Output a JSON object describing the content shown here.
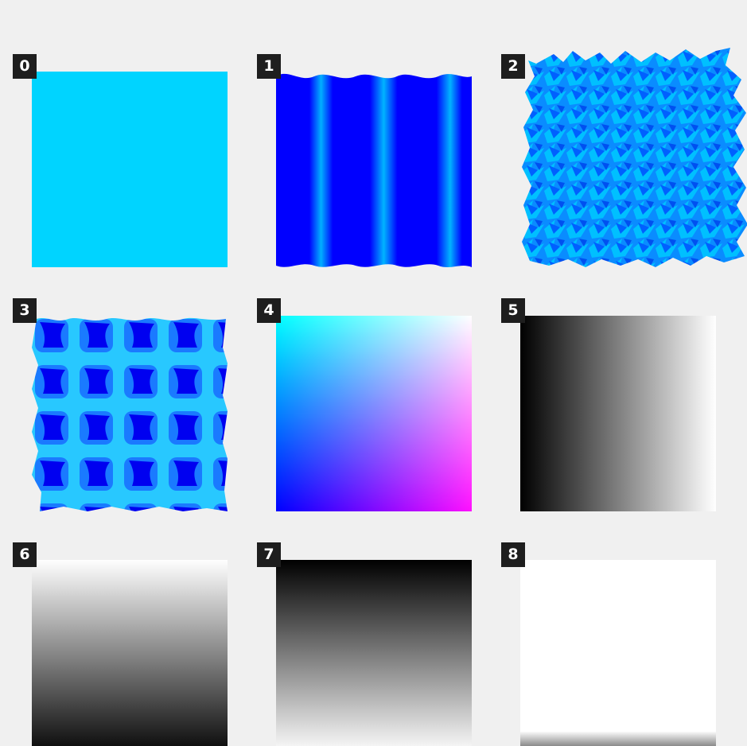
{
  "tiles": [
    {
      "label": "0",
      "texture": "solid-cyan"
    },
    {
      "label": "1",
      "texture": "vertical-wave-stripes"
    },
    {
      "label": "2",
      "texture": "spiky-noise"
    },
    {
      "label": "3",
      "texture": "wavy-cell-grid"
    },
    {
      "label": "4",
      "texture": "cyan-white-blue-magenta-gradient"
    },
    {
      "label": "5",
      "texture": "horizontal-black-to-white-gradient"
    },
    {
      "label": "6",
      "texture": "vertical-white-to-black-gradient"
    },
    {
      "label": "7",
      "texture": "vertical-black-to-white-gradient"
    },
    {
      "label": "8",
      "texture": "solid-white"
    }
  ],
  "colors": {
    "background": "#f0f0f0",
    "badge_bg": "#1e1e1e",
    "badge_text": "#ffffff",
    "cyan": "#00d4ff",
    "blue": "#0000ff",
    "magenta": "#ff10ff"
  }
}
